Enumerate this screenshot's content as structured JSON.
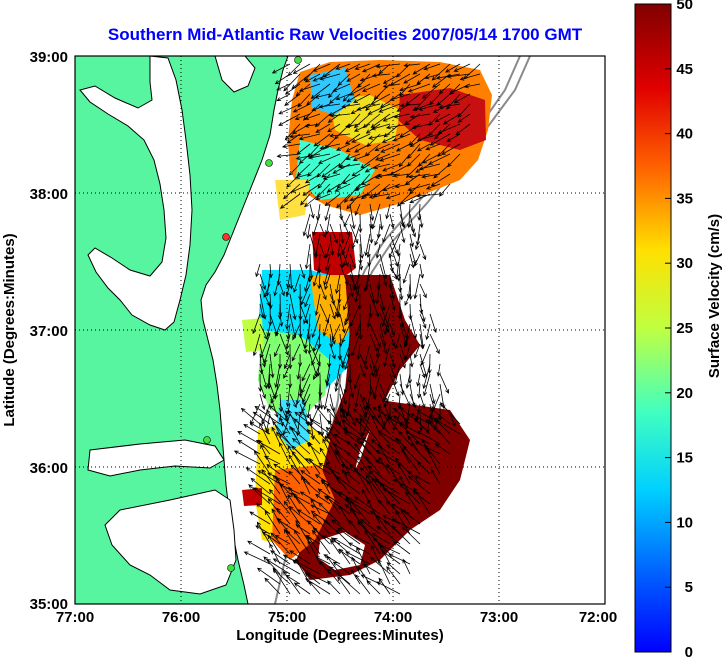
{
  "title": "Southern Mid-Atlantic Raw Velocities 2007/05/14 1700 GMT",
  "x_axis": {
    "label": "Longitude (Degrees:Minutes)",
    "ticks": [
      "77:00",
      "76:00",
      "75:00",
      "74:00",
      "73:00",
      "72:00"
    ]
  },
  "y_axis": {
    "label": "Latitude (Degrees:Minutes)",
    "ticks": [
      "39:00",
      "38:00",
      "37:00",
      "36:00",
      "35:00"
    ]
  },
  "colorbar": {
    "label": "Surface Velocity (cm/s)",
    "ticks": [
      "50",
      "45",
      "40",
      "35",
      "30",
      "25",
      "20",
      "15",
      "10",
      "5",
      "0"
    ],
    "min": 0,
    "max": 50,
    "gradient_stops": [
      "#0000ff",
      "#0080ff",
      "#00ffff",
      "#80ff80",
      "#ffff00",
      "#ff8000",
      "#ff0000",
      "#800000"
    ]
  },
  "colors": {
    "land": "#57f5a0",
    "water": "#ffffff",
    "coastline": "#000000",
    "title": "#0000ff",
    "bathymetry": "#8a8a8a"
  },
  "chart_data": {
    "type": "map",
    "extent_lon_west": [
      72,
      77
    ],
    "extent_lat": [
      35,
      39
    ],
    "grid": true,
    "color_scale": "jet",
    "value_units": "cm/s",
    "legend_placement": "right",
    "field_type": "surface current vectors over speed raster"
  }
}
